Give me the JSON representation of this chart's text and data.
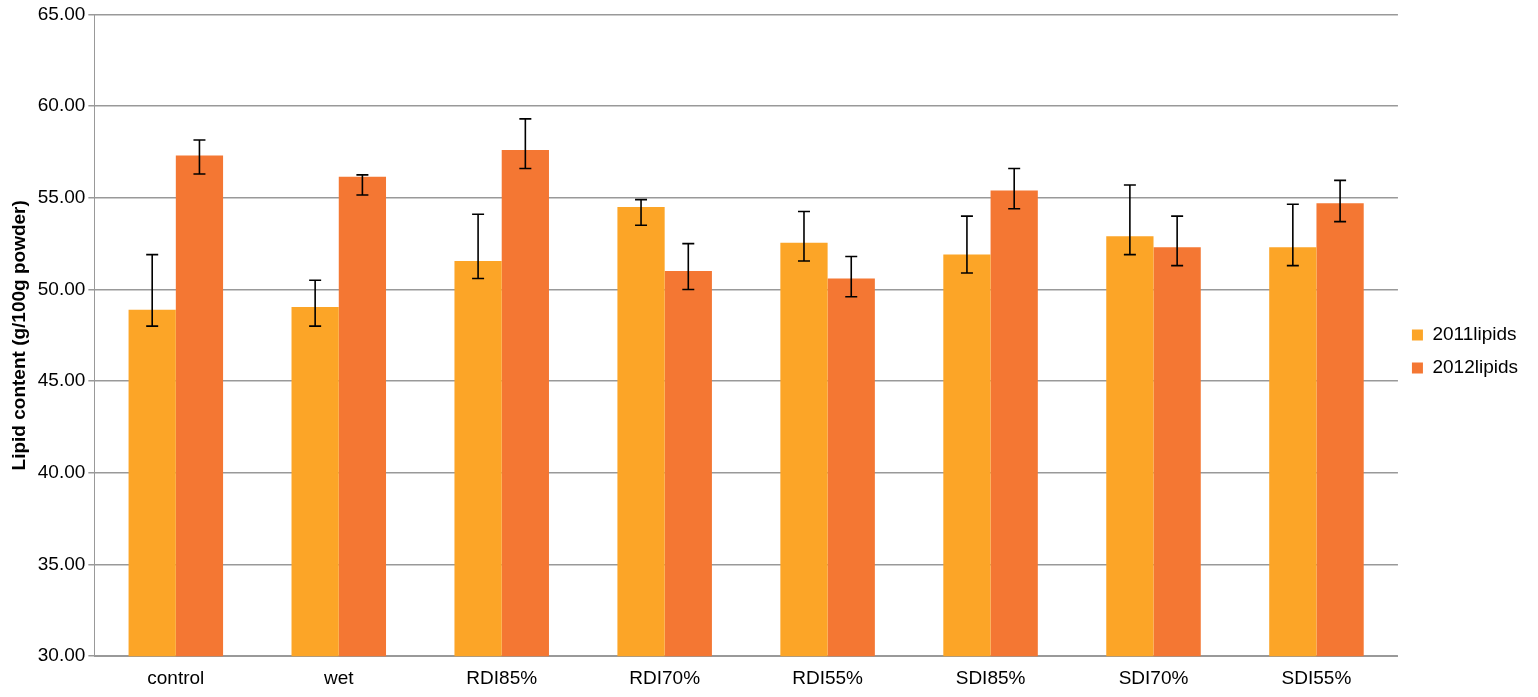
{
  "chart_data": {
    "type": "bar",
    "ylabel": "Lipid content (g/100g powder)",
    "categories": [
      "control",
      "wet",
      "RDI85%",
      "RDI70%",
      "RDI55%",
      "SDI85%",
      "SDI70%",
      "SDI55%"
    ],
    "series": [
      {
        "name": "2011lipids",
        "color": "#fca527",
        "values": [
          48.9,
          49.05,
          51.55,
          54.5,
          52.55,
          51.9,
          52.9,
          52.3
        ],
        "errors": [
          [
            48.0,
            51.9
          ],
          [
            48.0,
            50.5
          ],
          [
            50.6,
            54.1
          ],
          [
            53.5,
            54.9
          ],
          [
            51.55,
            54.25
          ],
          [
            50.9,
            54.0
          ],
          [
            51.9,
            55.7
          ],
          [
            51.3,
            54.65
          ]
        ]
      },
      {
        "name": "2012lipids",
        "color": "#f47733",
        "values": [
          57.3,
          56.15,
          57.6,
          51.0,
          50.6,
          55.4,
          52.3,
          54.7
        ],
        "errors": [
          [
            56.3,
            58.15
          ],
          [
            55.15,
            56.25
          ],
          [
            56.6,
            59.3
          ],
          [
            50.0,
            52.5
          ],
          [
            49.6,
            51.8
          ],
          [
            54.4,
            56.6
          ],
          [
            51.3,
            54.0
          ],
          [
            53.7,
            55.95
          ]
        ]
      }
    ],
    "ylim": [
      30,
      65
    ],
    "yticks": [
      {
        "value": 30,
        "label": "30.00"
      },
      {
        "value": 35,
        "label": "35.00"
      },
      {
        "value": 40,
        "label": "40.00"
      },
      {
        "value": 45,
        "label": "45.00"
      },
      {
        "value": 50,
        "label": "50.00"
      },
      {
        "value": 55,
        "label": "55.00"
      },
      {
        "value": 60,
        "label": "60.00"
      },
      {
        "value": 65,
        "label": "65.00"
      }
    ],
    "grid": "y",
    "legend": "right"
  }
}
